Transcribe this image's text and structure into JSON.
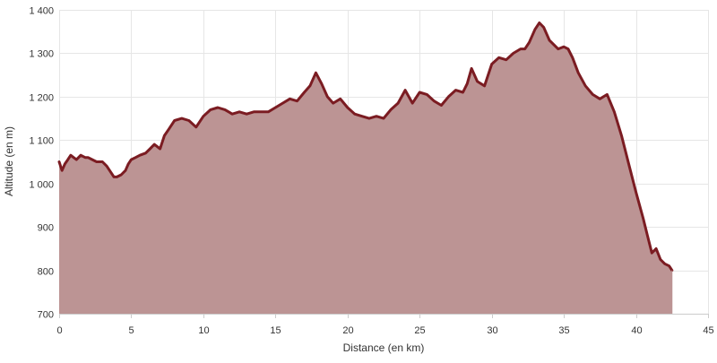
{
  "chart_data": {
    "type": "area",
    "title": "",
    "xlabel": "Distance (en km)",
    "ylabel": "Altitude (en m)",
    "xlim": [
      0,
      45
    ],
    "ylim": [
      700,
      1400
    ],
    "x_ticks": [
      0,
      5,
      10,
      15,
      20,
      25,
      30,
      35,
      40,
      45
    ],
    "y_ticks": [
      700,
      800,
      900,
      1000,
      1100,
      1200,
      1300,
      1400
    ],
    "x_tick_labels": [
      "0",
      "5",
      "10",
      "15",
      "20",
      "25",
      "30",
      "35",
      "40",
      "45"
    ],
    "y_tick_labels": [
      "700",
      "800",
      "900",
      "1 000",
      "1 100",
      "1 200",
      "1 300",
      "1 400"
    ],
    "grid": true,
    "legend": "none",
    "colors": {
      "line": "#7b1c22",
      "fill": "#bc9494",
      "grid": "#e6e6e6",
      "axis": "#cccccc"
    },
    "series": [
      {
        "x": [
          0,
          0.2,
          0.4,
          0.6,
          0.8,
          1.0,
          1.2,
          1.5,
          1.8,
          2.0,
          2.3,
          2.6,
          3.0,
          3.3,
          3.6,
          3.8,
          4.0,
          4.3,
          4.6,
          4.8,
          5.0,
          5.3,
          5.6,
          6.0,
          6.3,
          6.6,
          7.0,
          7.3,
          7.6,
          8.0,
          8.5,
          9.0,
          9.5,
          10.0,
          10.5,
          11.0,
          11.5,
          12.0,
          12.5,
          13.0,
          13.5,
          14.0,
          14.5,
          15.0,
          15.5,
          16.0,
          16.5,
          17.0,
          17.4,
          17.8,
          18.2,
          18.6,
          19.0,
          19.5,
          20.0,
          20.5,
          21.0,
          21.5,
          22.0,
          22.5,
          23.0,
          23.5,
          24.0,
          24.5,
          25.0,
          25.5,
          26.0,
          26.5,
          27.0,
          27.5,
          28.0,
          28.3,
          28.6,
          29.0,
          29.5,
          30.0,
          30.5,
          31.0,
          31.5,
          32.0,
          32.3,
          32.6,
          33.0,
          33.3,
          33.6,
          34.0,
          34.3,
          34.6,
          35.0,
          35.3,
          35.6,
          36.0,
          36.5,
          37.0,
          37.5,
          38.0,
          38.5,
          39.0,
          39.5,
          40.0,
          40.5,
          40.8,
          41.1,
          41.4,
          41.7,
          42.0,
          42.3,
          42.5
        ],
        "y": [
          1050,
          1030,
          1045,
          1055,
          1065,
          1060,
          1055,
          1065,
          1060,
          1060,
          1055,
          1050,
          1050,
          1040,
          1025,
          1015,
          1015,
          1020,
          1030,
          1045,
          1055,
          1060,
          1065,
          1070,
          1080,
          1090,
          1080,
          1110,
          1125,
          1145,
          1150,
          1145,
          1130,
          1155,
          1170,
          1175,
          1170,
          1160,
          1165,
          1160,
          1165,
          1165,
          1165,
          1175,
          1185,
          1195,
          1190,
          1210,
          1225,
          1255,
          1230,
          1200,
          1185,
          1195,
          1175,
          1160,
          1155,
          1150,
          1155,
          1150,
          1170,
          1185,
          1215,
          1185,
          1210,
          1205,
          1190,
          1180,
          1200,
          1215,
          1210,
          1230,
          1265,
          1235,
          1225,
          1275,
          1290,
          1285,
          1300,
          1310,
          1310,
          1325,
          1355,
          1370,
          1360,
          1330,
          1320,
          1310,
          1315,
          1310,
          1290,
          1255,
          1225,
          1205,
          1195,
          1205,
          1165,
          1110,
          1045,
          980,
          920,
          880,
          840,
          850,
          825,
          815,
          810,
          800
        ]
      }
    ]
  }
}
